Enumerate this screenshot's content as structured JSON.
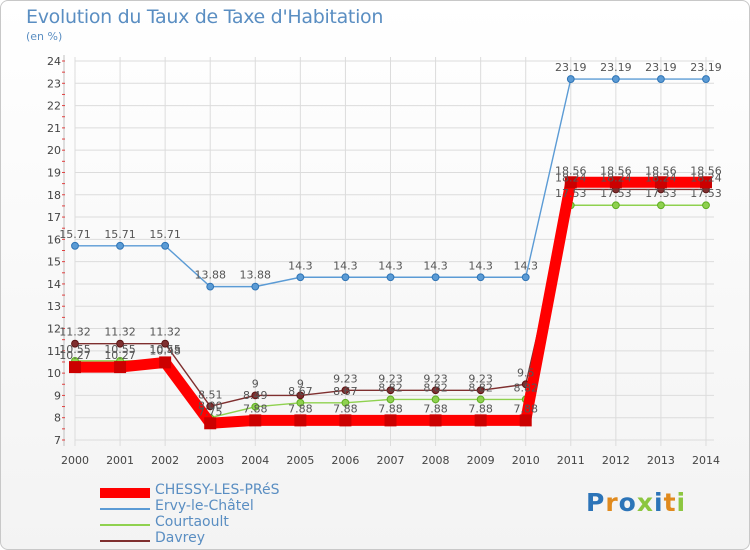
{
  "title": "Evolution du Taux de Taxe d'Habitation",
  "subtitle": "(en %)",
  "logo_text": "Proxiti",
  "logo_letter_colors": [
    "#2c74b8",
    "#e08a1e",
    "#2c74b8",
    "#8cc63f",
    "#2c74b8",
    "#e08a1e",
    "#8cc63f"
  ],
  "chart_data": {
    "type": "line",
    "x": [
      "2000",
      "2001",
      "2002",
      "2003",
      "2004",
      "2005",
      "2006",
      "2007",
      "2008",
      "2009",
      "2010",
      "2011",
      "2012",
      "2013",
      "2014"
    ],
    "ylim": [
      7,
      24
    ],
    "yticks": [
      "7",
      "8",
      "9",
      "10",
      "11",
      "12",
      "13",
      "14",
      "15",
      "16",
      "17",
      "18",
      "19",
      "20",
      "21",
      "22",
      "23",
      "24"
    ],
    "grid": true,
    "legend_position": "bottom-left",
    "series": [
      {
        "name": "CHESSY-LES-PRéS",
        "color": "#ff0000",
        "values": [
          10.27,
          10.27,
          10.48,
          7.75,
          7.88,
          7.88,
          7.88,
          7.88,
          7.88,
          7.88,
          7.88,
          18.56,
          18.56,
          18.56,
          18.56
        ],
        "labels": [
          "10.27",
          "10.27",
          "10.48",
          "7.75",
          "7.88",
          "7.88",
          "7.88",
          "7.88",
          "7.88",
          "7.88",
          "7.88",
          "18.56",
          "18.56",
          "18.56",
          "18.56"
        ]
      },
      {
        "name": "Ervy-le-Châtel",
        "color": "#5b9bd5",
        "values": [
          15.71,
          15.71,
          15.71,
          13.88,
          13.88,
          14.3,
          14.3,
          14.3,
          14.3,
          14.3,
          14.3,
          23.19,
          23.19,
          23.19,
          23.19
        ],
        "labels": [
          "15.71",
          "15.71",
          "15.71",
          "13.88",
          "13.88",
          "14.3",
          "14.3",
          "14.3",
          "14.3",
          "14.3",
          "14.3",
          "23.19",
          "23.19",
          "23.19",
          "23.19"
        ]
      },
      {
        "name": "Courtaoult",
        "color": "#8fd14f",
        "values": [
          10.55,
          10.55,
          10.55,
          8.0,
          8.49,
          8.67,
          8.67,
          8.82,
          8.82,
          8.82,
          8.82,
          17.53,
          17.53,
          17.53,
          17.53
        ],
        "labels": [
          "10.55",
          "10.55",
          "10.55",
          "8.00",
          "8.49",
          "8.67",
          "8.67",
          "8.82",
          "8.82",
          "8.82",
          "8.82",
          "17.53",
          "17.53",
          "17.53",
          "17.53"
        ]
      },
      {
        "name": "Davrey",
        "color": "#7f2f2f",
        "values": [
          11.32,
          11.32,
          11.32,
          8.51,
          9.0,
          9.0,
          9.23,
          9.23,
          9.23,
          9.23,
          9.5,
          18.24,
          18.24,
          18.24,
          18.24
        ],
        "labels": [
          "11.32",
          "11.32",
          "11.32",
          "8.51",
          "9",
          "9",
          "9.23",
          "9.23",
          "9.23",
          "9.23",
          "9.5",
          "18.24",
          "18.24",
          "18.24",
          "18.24"
        ]
      }
    ]
  }
}
